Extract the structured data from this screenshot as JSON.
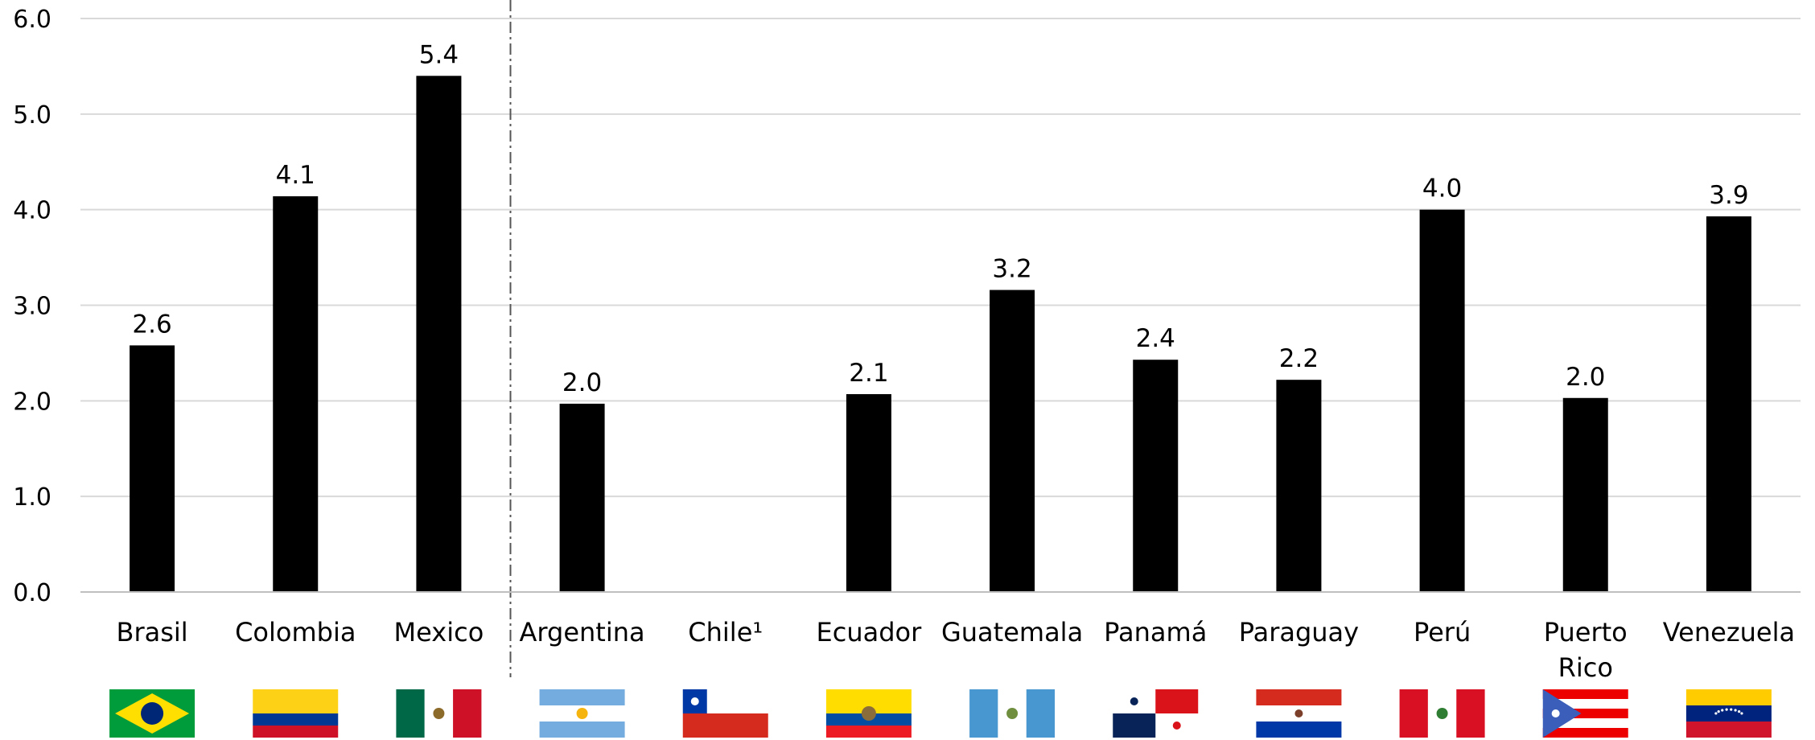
{
  "chart_data": {
    "type": "bar",
    "categories": [
      "Brasil",
      "Colombia",
      "Mexico",
      "Argentina",
      "Chile¹",
      "Ecuador",
      "Guatemala",
      "Panamá",
      "Paraguay",
      "Perú",
      "Puerto Rico",
      "Venezuela"
    ],
    "values": [
      2.58,
      4.14,
      5.4,
      1.97,
      null,
      2.07,
      3.16,
      2.43,
      2.22,
      4.0,
      2.03,
      3.93
    ],
    "data_labels": [
      "2.6",
      "4.1",
      "5.4",
      "2.0",
      "",
      "2.1",
      "3.2",
      "2.4",
      "2.2",
      "4.0",
      "2.0",
      "3.9"
    ],
    "ylim": [
      0,
      6
    ],
    "yticks": [
      "0.0",
      "1.0",
      "2.0",
      "3.0",
      "4.0",
      "5.0",
      "6.0"
    ],
    "grid": true,
    "bar_color": "#000000",
    "grid_color": "#d9d9d9",
    "title": "",
    "xlabel": "",
    "ylabel": "",
    "group_separator_after": "Mexico"
  },
  "flags": [
    "brazil-flag-icon",
    "colombia-flag-icon",
    "mexico-flag-icon",
    "argentina-flag-icon",
    "chile-flag-icon",
    "ecuador-flag-icon",
    "guatemala-flag-icon",
    "panama-flag-icon",
    "paraguay-flag-icon",
    "peru-flag-icon",
    "puerto-rico-flag-icon",
    "venezuela-flag-icon"
  ]
}
